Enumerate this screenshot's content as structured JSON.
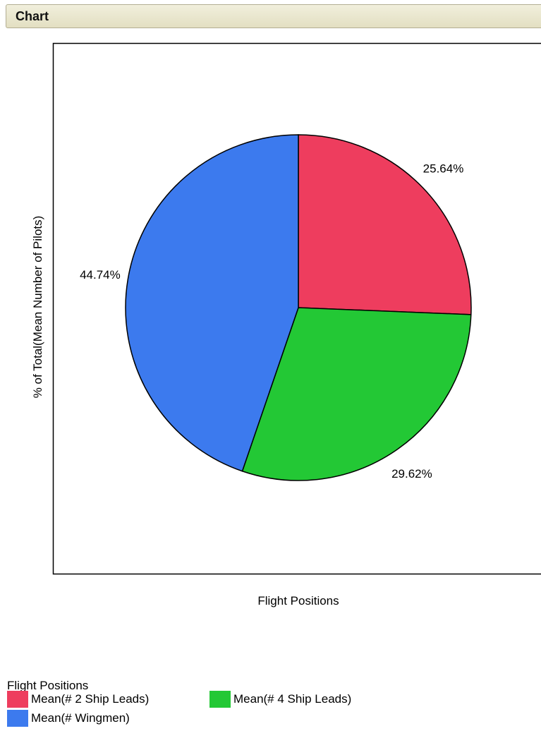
{
  "panel": {
    "title": "Chart"
  },
  "chart_data": {
    "type": "pie",
    "ylabel": "% of Total(Mean Number of Pilots)",
    "xlabel": "Flight Positions",
    "legend_title": "Flight Positions",
    "legend_position": "bottom",
    "slices": [
      {
        "name": "Mean(# 2 Ship Leads)",
        "value": 25.64,
        "label": "25.64%",
        "color": "#ee3d5e"
      },
      {
        "name": "Mean(# 4 Ship Leads)",
        "value": 29.62,
        "label": "29.62%",
        "color": "#23c835"
      },
      {
        "name": "Mean(# Wingmen)",
        "value": 44.74,
        "label": "44.74%",
        "color": "#3c7aee"
      }
    ]
  }
}
